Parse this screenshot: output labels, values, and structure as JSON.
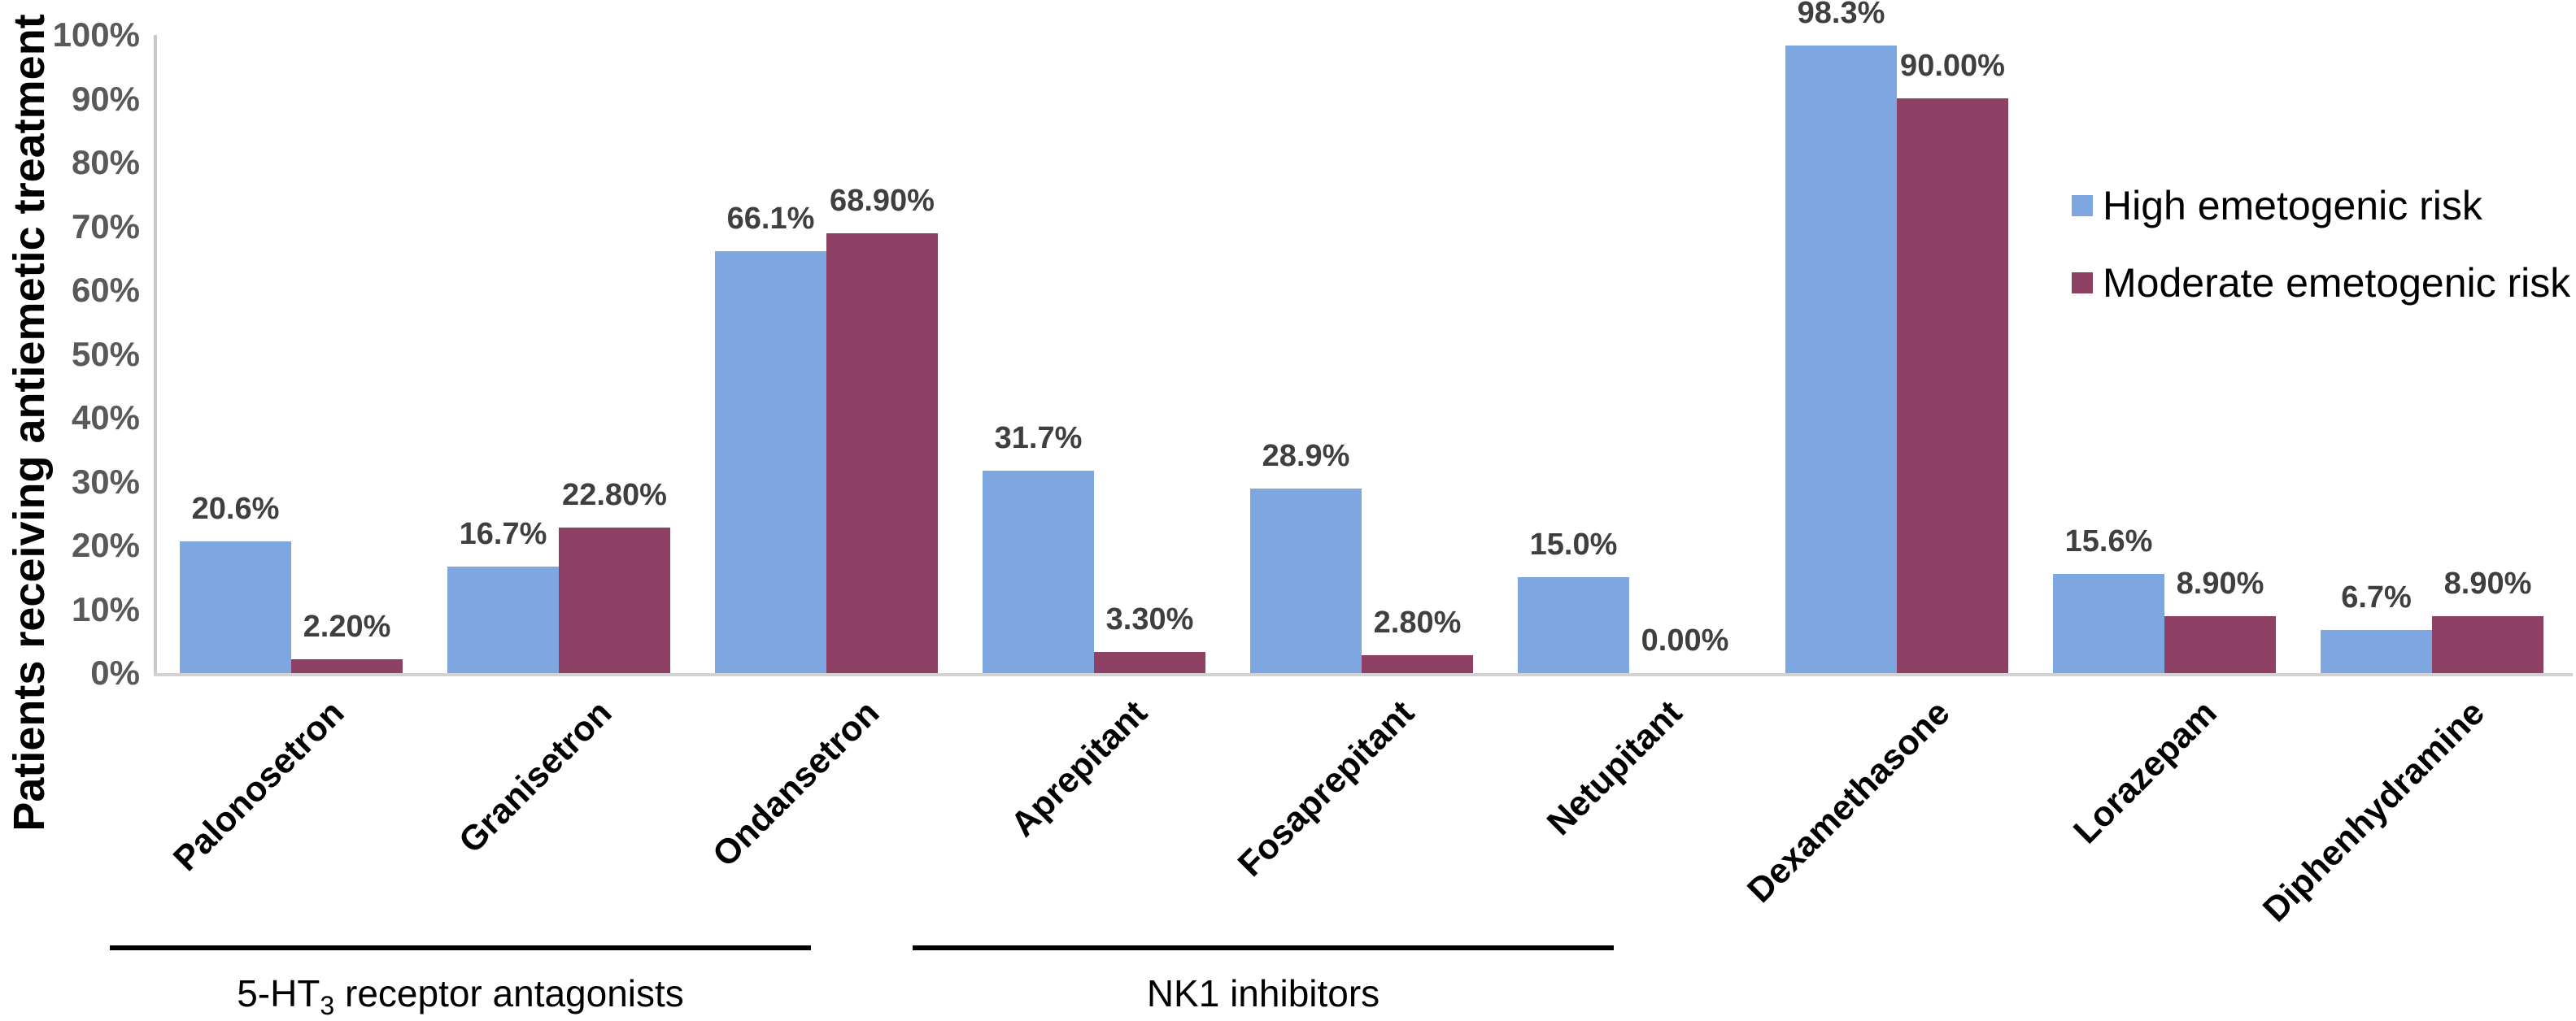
{
  "chart_data": {
    "type": "bar",
    "title": "",
    "xlabel": "",
    "ylabel": "Patients receiving antiemetic treatment",
    "ylim": [
      0,
      100
    ],
    "ytick_step": 10,
    "yticks": [
      "0%",
      "10%",
      "20%",
      "30%",
      "40%",
      "50%",
      "60%",
      "70%",
      "80%",
      "90%",
      "100%"
    ],
    "grid": false,
    "legend_position": "right",
    "categories": [
      "Palonosetron",
      "Granisetron",
      "Ondansetron",
      "Aprepitant",
      "Fosaprepitant",
      "Netupitant",
      "Dexamethasone",
      "Lorazepam",
      "Diphenhydramine"
    ],
    "series": [
      {
        "name": "High emetogenic risk",
        "color": "#7EA6E0",
        "values": [
          20.6,
          16.7,
          66.1,
          31.7,
          28.9,
          15.0,
          98.3,
          15.6,
          6.7
        ],
        "value_labels": [
          "20.6%",
          "16.7%",
          "66.1%",
          "31.7%",
          "28.9%",
          "15.0%",
          "98.3%",
          "15.6%",
          "6.7%"
        ]
      },
      {
        "name": "Moderate emetogenic risk",
        "color": "#8E4164",
        "values": [
          2.2,
          22.8,
          68.9,
          3.3,
          2.8,
          0.0,
          90.0,
          8.9,
          8.9
        ],
        "value_labels": [
          "2.20%",
          "22.80%",
          "68.90%",
          "3.30%",
          "2.80%",
          "0.00%",
          "90.00%",
          "8.90%",
          "8.90%"
        ]
      }
    ],
    "category_groups": [
      {
        "prefix": "5-HT",
        "sub": "3",
        "suffix": " receptor antagonists",
        "from": 0,
        "to": 2
      },
      {
        "prefix": "NK1 inhibitors",
        "sub": "",
        "suffix": "",
        "from": 3,
        "to": 5
      }
    ]
  }
}
